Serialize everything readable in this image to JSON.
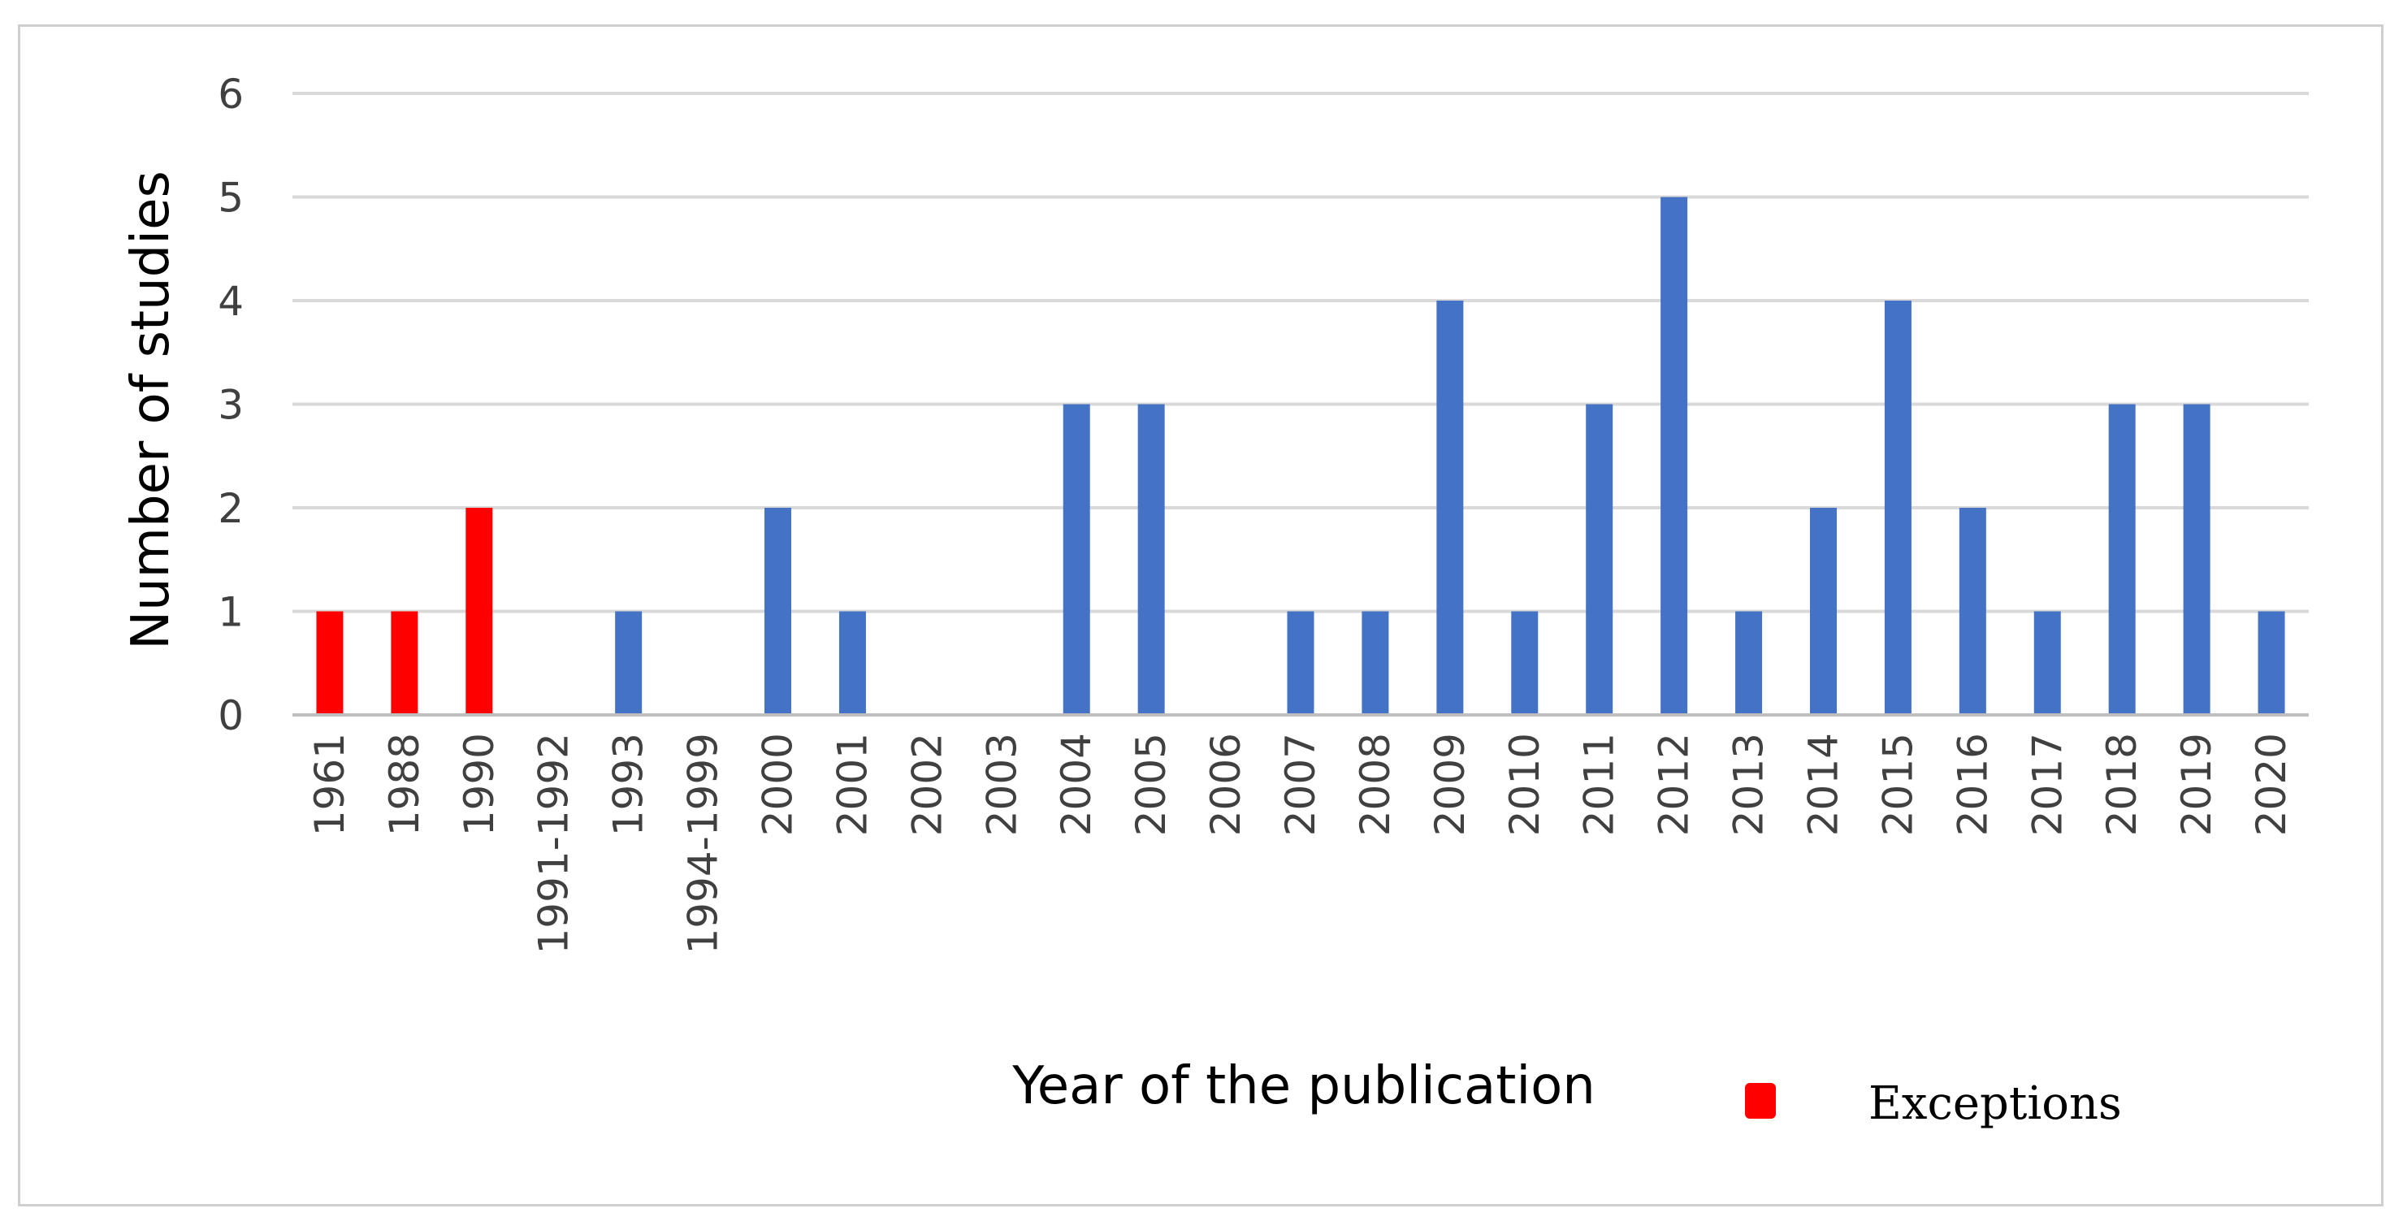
{
  "chart_data": {
    "type": "bar",
    "title": "",
    "xlabel": "Year of the publication",
    "ylabel": "Number of studies",
    "ylim": [
      0,
      6
    ],
    "yticks": [
      0,
      1,
      2,
      3,
      4,
      5,
      6
    ],
    "grid": true,
    "legend": {
      "placement": "bottom-right",
      "entries": [
        {
          "name": "Exceptions",
          "color": "#ff0000"
        }
      ]
    },
    "colors": {
      "exception": "#ff0000",
      "regular": "#4472c4",
      "grid": "#d9d9d9",
      "axis": "#bfbfbf"
    },
    "categories": [
      "1961",
      "1988",
      "1990",
      "1991-1992",
      "1993",
      "1994-1999",
      "2000",
      "2001",
      "2002",
      "2003",
      "2004",
      "2005",
      "2006",
      "2007",
      "2008",
      "2009",
      "2010",
      "2011",
      "2012",
      "2013",
      "2014",
      "2015",
      "2016",
      "2017",
      "2018",
      "2019",
      "2020"
    ],
    "values": [
      1,
      1,
      2,
      0,
      1,
      0,
      2,
      1,
      0,
      0,
      3,
      3,
      0,
      1,
      1,
      4,
      1,
      3,
      5,
      1,
      2,
      4,
      2,
      1,
      3,
      3,
      1
    ],
    "exception_categories": [
      "1961",
      "1988",
      "1990"
    ]
  }
}
